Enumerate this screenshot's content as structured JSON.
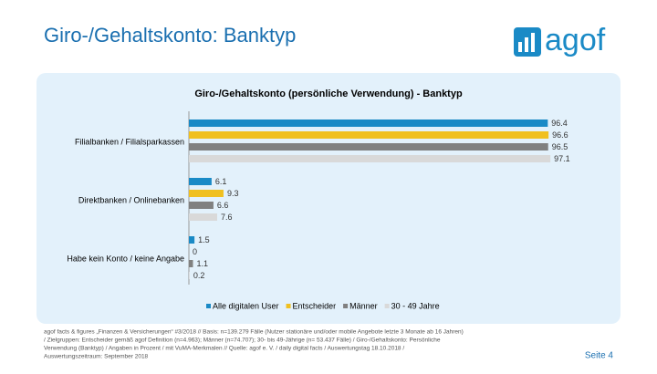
{
  "header": {
    "title": "Giro-/Gehaltskonto: Banktyp",
    "logo": "agof"
  },
  "chart_data": {
    "type": "bar",
    "orientation": "horizontal",
    "title": "Giro-/Gehaltskonto (persönliche Verwendung) - Banktyp",
    "categories": [
      "Filialbanken / Filialsparkassen",
      "Direktbanken / Onlinebanken",
      "Habe kein Konto / keine Angabe"
    ],
    "series": [
      {
        "name": "Alle digitalen User",
        "color": "#1a8ac6",
        "values": [
          96.4,
          6.1,
          1.5
        ]
      },
      {
        "name": "Entscheider",
        "color": "#f0c020",
        "values": [
          96.6,
          9.3,
          0
        ]
      },
      {
        "name": "Männer",
        "color": "#808080",
        "values": [
          96.5,
          6.6,
          1.1
        ]
      },
      {
        "name": "30 - 49 Jahre",
        "color": "#d9d9d9",
        "values": [
          97.1,
          7.6,
          0.2
        ]
      }
    ],
    "xlim": [
      0,
      100
    ]
  },
  "footer": {
    "lines": [
      "agof facts & figures „Finanzen & Versicherungen“ #3/2018 // Basis: n=139.279 Fälle (Nutzer stationäre und/oder mobile Angebote letzte 3 Monate ab 16 Jahren)",
      "/ Zielgruppen: Entscheider gemäß agof Definition (n=4.963); Männer (n=74.707); 30- bis 49-Jährige (n= 53.437 Fälle) / Giro-/Gehaltskonto: Persönliche",
      "Verwendung (Banktyp) / Angaben in Prozent / mit VuMA-Merkmalen // Quelle: agof e. V. / daily digital facts / Auswertungstag 18.10.2018 /",
      "Auswertungszeitraum: September 2018"
    ],
    "page": "Seite 4"
  }
}
